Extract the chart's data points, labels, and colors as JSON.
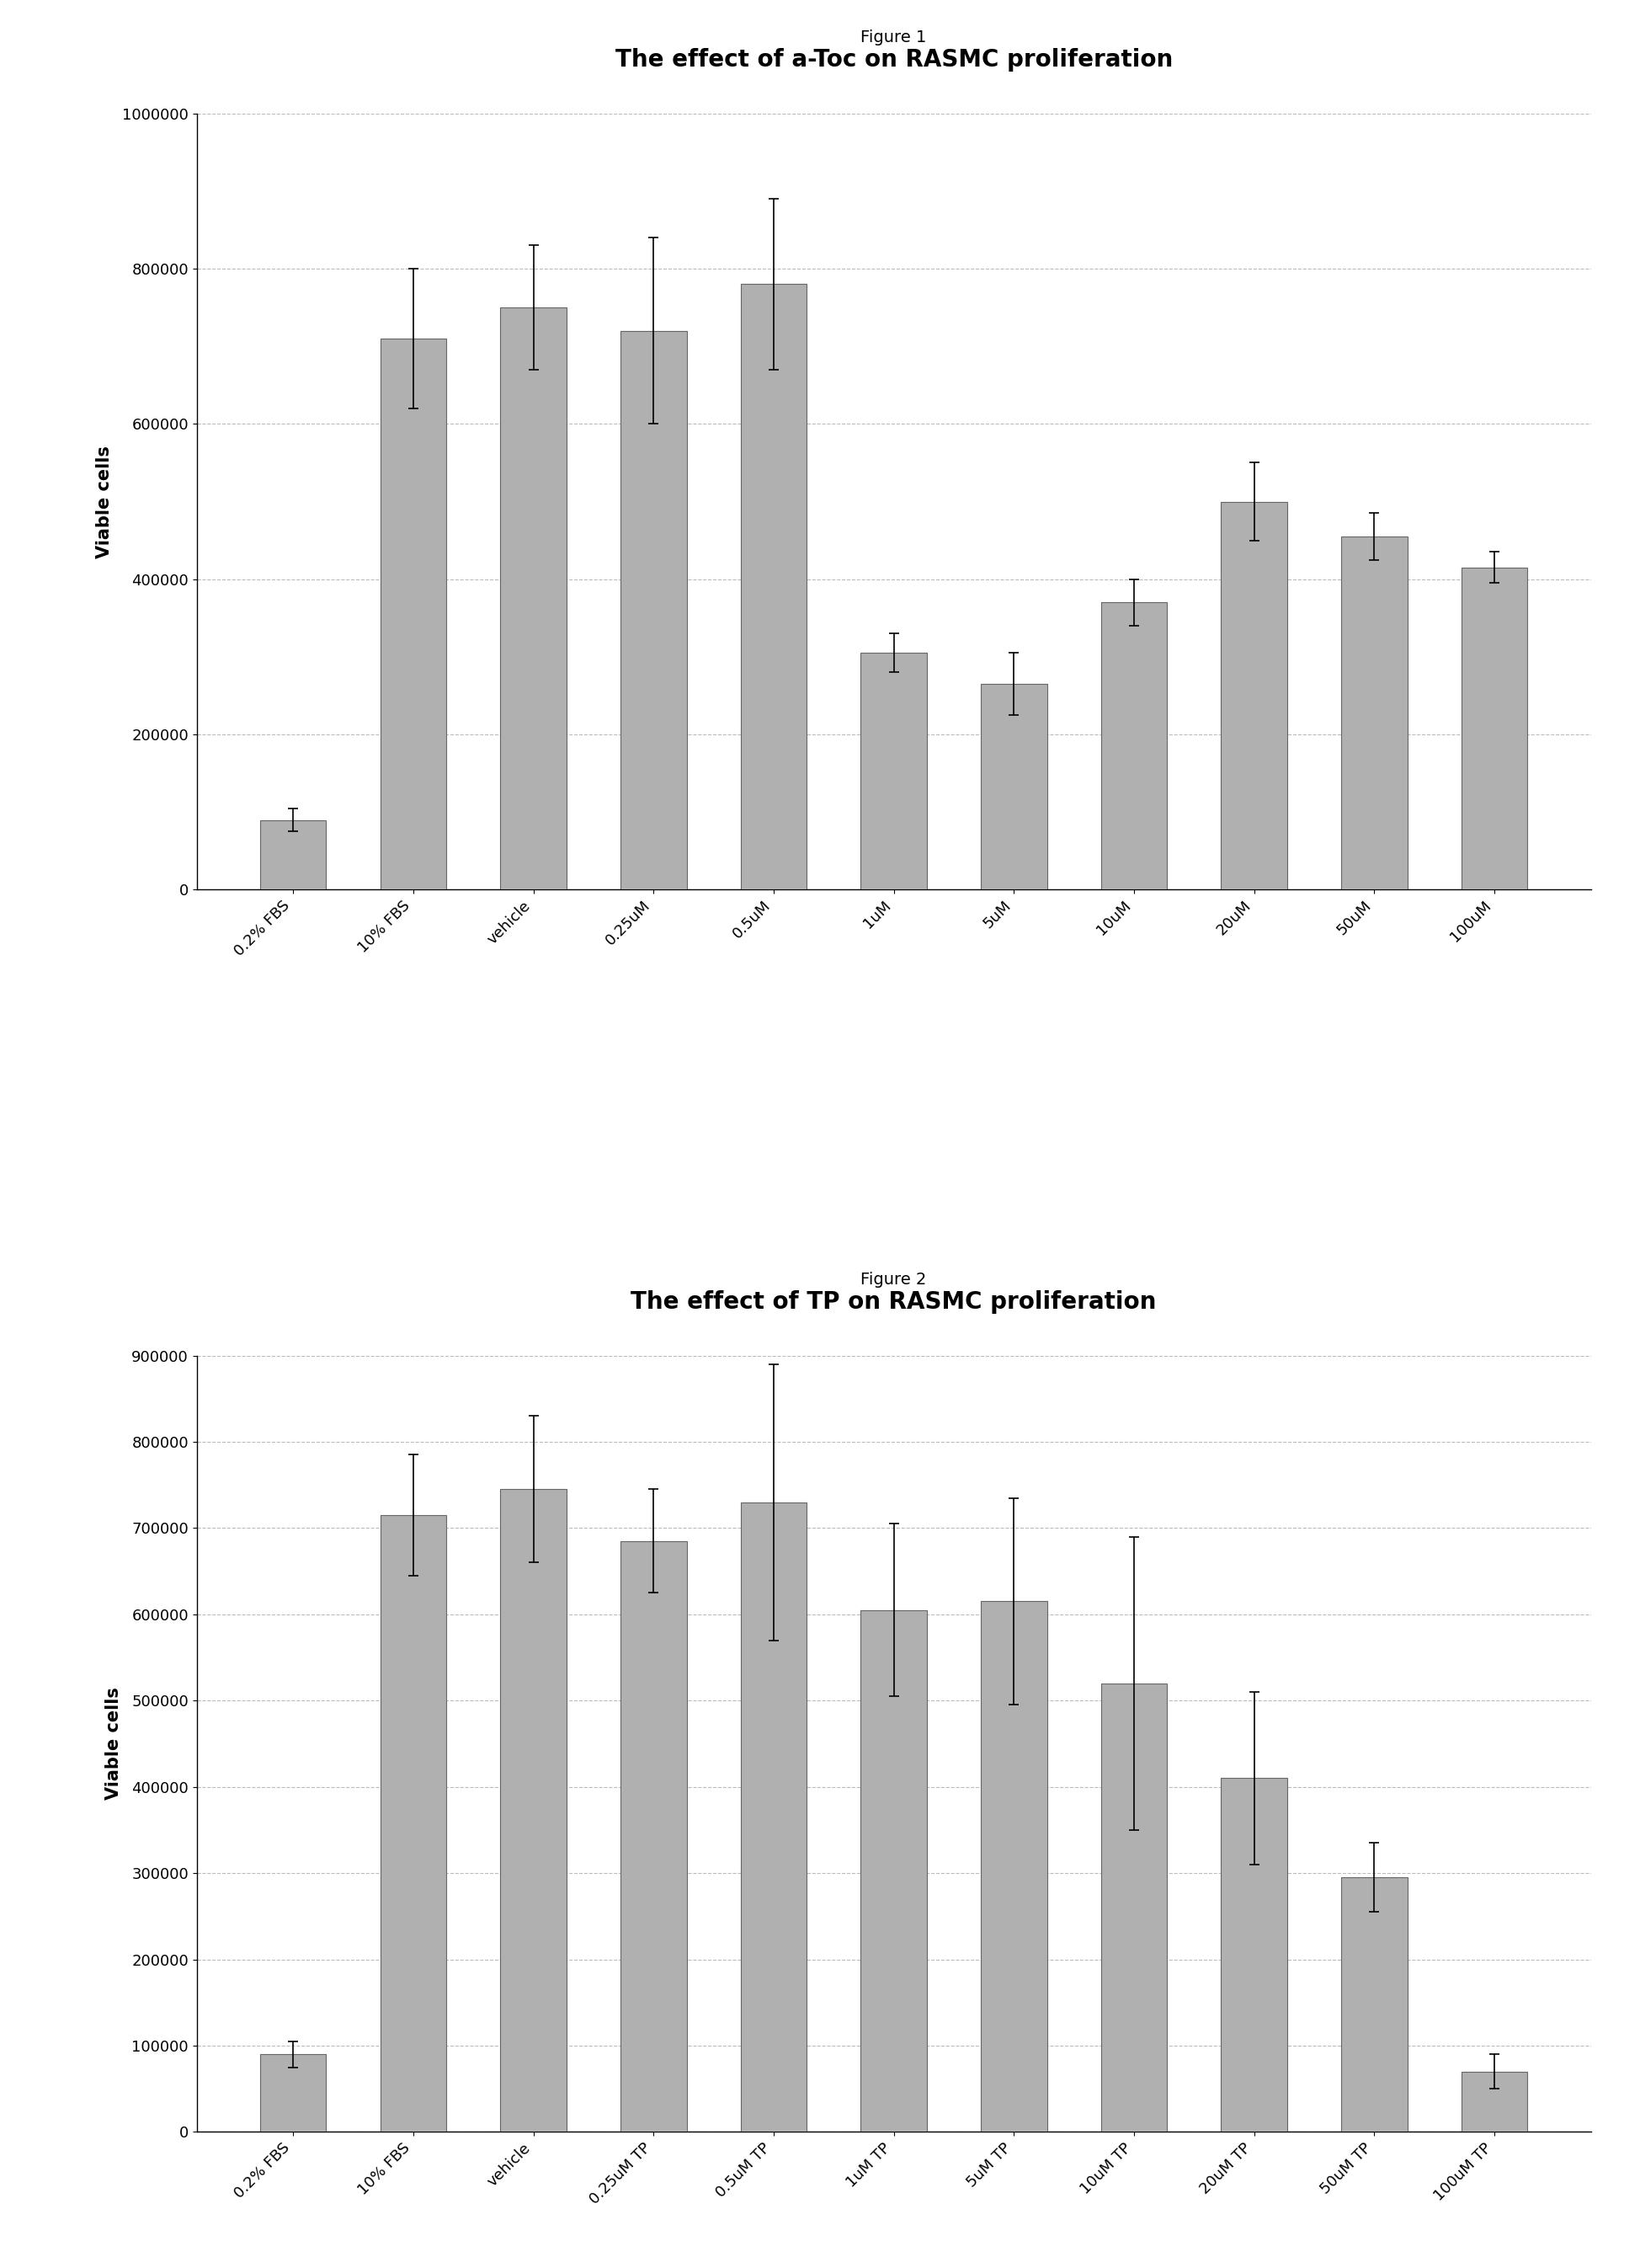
{
  "fig1_title_top": "Figure 1",
  "fig1_title_main": "The effect of a-Toc on RASMC proliferation",
  "fig2_title_top": "Figure 2",
  "fig2_title_main": "The effect of TP on RASMC proliferation",
  "ylabel": "Viable cells",
  "fig1_categories": [
    "0.2% FBS",
    "10% FBS",
    "vehicle",
    "0.25uM",
    "0.5uM",
    "1uM",
    "5uM",
    "10uM",
    "20uM",
    "50uM",
    "100uM"
  ],
  "fig1_values": [
    90000,
    710000,
    750000,
    720000,
    780000,
    305000,
    265000,
    370000,
    500000,
    455000,
    415000
  ],
  "fig1_errors": [
    15000,
    90000,
    80000,
    120000,
    110000,
    25000,
    40000,
    30000,
    50000,
    30000,
    20000
  ],
  "fig1_ylim": [
    0,
    1000000
  ],
  "fig1_yticks": [
    0,
    200000,
    400000,
    600000,
    800000,
    1000000
  ],
  "fig2_categories": [
    "0.2% FBS",
    "10% FBS",
    "vehicle",
    "0.25uM TP",
    "0.5uM TP",
    "1uM TP",
    "5uM TP",
    "10uM TP",
    "20uM TP",
    "50uM TP",
    "100uM TP"
  ],
  "fig2_values": [
    90000,
    715000,
    745000,
    685000,
    730000,
    605000,
    615000,
    520000,
    410000,
    295000,
    70000
  ],
  "fig2_errors": [
    15000,
    70000,
    85000,
    60000,
    160000,
    100000,
    120000,
    170000,
    100000,
    40000,
    20000
  ],
  "fig2_ylim": [
    0,
    900000
  ],
  "fig2_yticks": [
    0,
    100000,
    200000,
    300000,
    400000,
    500000,
    600000,
    700000,
    800000,
    900000
  ],
  "bar_color": "#b0b0b0",
  "bar_edgecolor": "#666666",
  "error_color": "black",
  "grid_color": "#bbbbbb",
  "background_color": "#ffffff",
  "fig_label_fontsize": 14,
  "main_title_fontsize": 20,
  "tick_fontsize": 13,
  "ylabel_fontsize": 15
}
